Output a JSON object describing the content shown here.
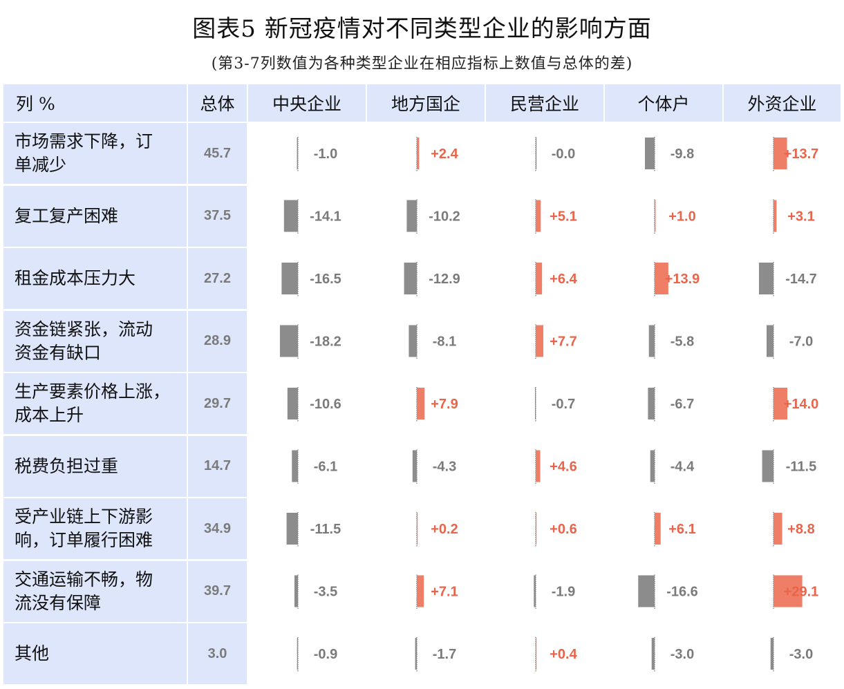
{
  "title": "图表5  新冠疫情对不同类型企业的影响方面",
  "subtitle": "(第3-7列数值为各种类型企业在相应指标上数值与总体的差)",
  "colors": {
    "header_bg": "#dde6fb",
    "positive": "#ee7f66",
    "negative": "#8c8c8c",
    "positive_text": "#e8644a",
    "negative_text": "#7a7a7a"
  },
  "chart_data": {
    "type": "table",
    "columns": [
      "列 %",
      "总体",
      "中央企业",
      "地方国企",
      "民营企业",
      "个体户",
      "外资企业"
    ],
    "rows": [
      {
        "label": "市场需求下降，订\n单减少",
        "total": "45.7",
        "diffs": [
          -1.0,
          2.4,
          -0.0,
          -9.8,
          13.7
        ],
        "diff_labels": [
          "-1.0",
          "+2.4",
          "-0.0",
          "-9.8",
          "+13.7"
        ]
      },
      {
        "label": "复工复产困难",
        "total": "37.5",
        "diffs": [
          -14.1,
          -10.2,
          5.1,
          1.0,
          3.1
        ],
        "diff_labels": [
          "-14.1",
          "-10.2",
          "+5.1",
          "+1.0",
          "+3.1"
        ]
      },
      {
        "label": "租金成本压力大",
        "total": "27.2",
        "diffs": [
          -16.5,
          -12.9,
          6.4,
          13.9,
          -14.7
        ],
        "diff_labels": [
          "-16.5",
          "-12.9",
          "+6.4",
          "+13.9",
          "-14.7"
        ]
      },
      {
        "label": "资金链紧张，流动\n资金有缺口",
        "total": "28.9",
        "diffs": [
          -18.2,
          -8.1,
          7.7,
          -5.8,
          -7.0
        ],
        "diff_labels": [
          "-18.2",
          "-8.1",
          "+7.7",
          "-5.8",
          "-7.0"
        ]
      },
      {
        "label": "生产要素价格上涨，\n成本上升",
        "total": "29.7",
        "diffs": [
          -10.6,
          7.9,
          -0.7,
          -6.7,
          14.0
        ],
        "diff_labels": [
          "-10.6",
          "+7.9",
          "-0.7",
          "-6.7",
          "+14.0"
        ]
      },
      {
        "label": "税费负担过重",
        "total": "14.7",
        "diffs": [
          -6.1,
          -4.3,
          4.6,
          -4.4,
          -11.5
        ],
        "diff_labels": [
          "-6.1",
          "-4.3",
          "+4.6",
          "-4.4",
          "-11.5"
        ]
      },
      {
        "label": "受产业链上下游影\n响，订单履行困难",
        "total": "34.9",
        "diffs": [
          -11.5,
          0.2,
          0.6,
          6.1,
          8.8
        ],
        "diff_labels": [
          "-11.5",
          "+0.2",
          "+0.6",
          "+6.1",
          "+8.8"
        ]
      },
      {
        "label": "交通运输不畅，物\n流没有保障",
        "total": "39.7",
        "diffs": [
          -3.5,
          7.1,
          -1.9,
          -16.6,
          29.1
        ],
        "diff_labels": [
          "-3.5",
          "+7.1",
          "-1.9",
          "-16.6",
          "+29.1"
        ]
      },
      {
        "label": "其他",
        "total": "3.0",
        "diffs": [
          -0.9,
          -1.7,
          0.4,
          -3.0,
          -3.0
        ],
        "diff_labels": [
          "-0.9",
          "-1.7",
          "+0.4",
          "-3.0",
          "-3.0"
        ]
      }
    ]
  }
}
